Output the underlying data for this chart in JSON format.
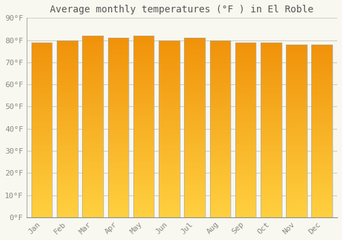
{
  "title": "Average monthly temperatures (°F ) in El Roble",
  "months": [
    "Jan",
    "Feb",
    "Mar",
    "Apr",
    "May",
    "Jun",
    "Jul",
    "Aug",
    "Sep",
    "Oct",
    "Nov",
    "Dec"
  ],
  "values": [
    79,
    80,
    82,
    81,
    82,
    80,
    81,
    80,
    79,
    79,
    78,
    78
  ],
  "ylim": [
    0,
    90
  ],
  "ytick_step": 10,
  "bar_color_bottom": "#FFD040",
  "bar_color_top": "#F0920A",
  "bar_edge_color": "#AAAAAA",
  "background_color": "#F8F8F0",
  "grid_color": "#CCCCCC",
  "text_color": "#888888",
  "title_color": "#555555",
  "title_fontsize": 10,
  "tick_fontsize": 8,
  "bar_width": 0.82
}
